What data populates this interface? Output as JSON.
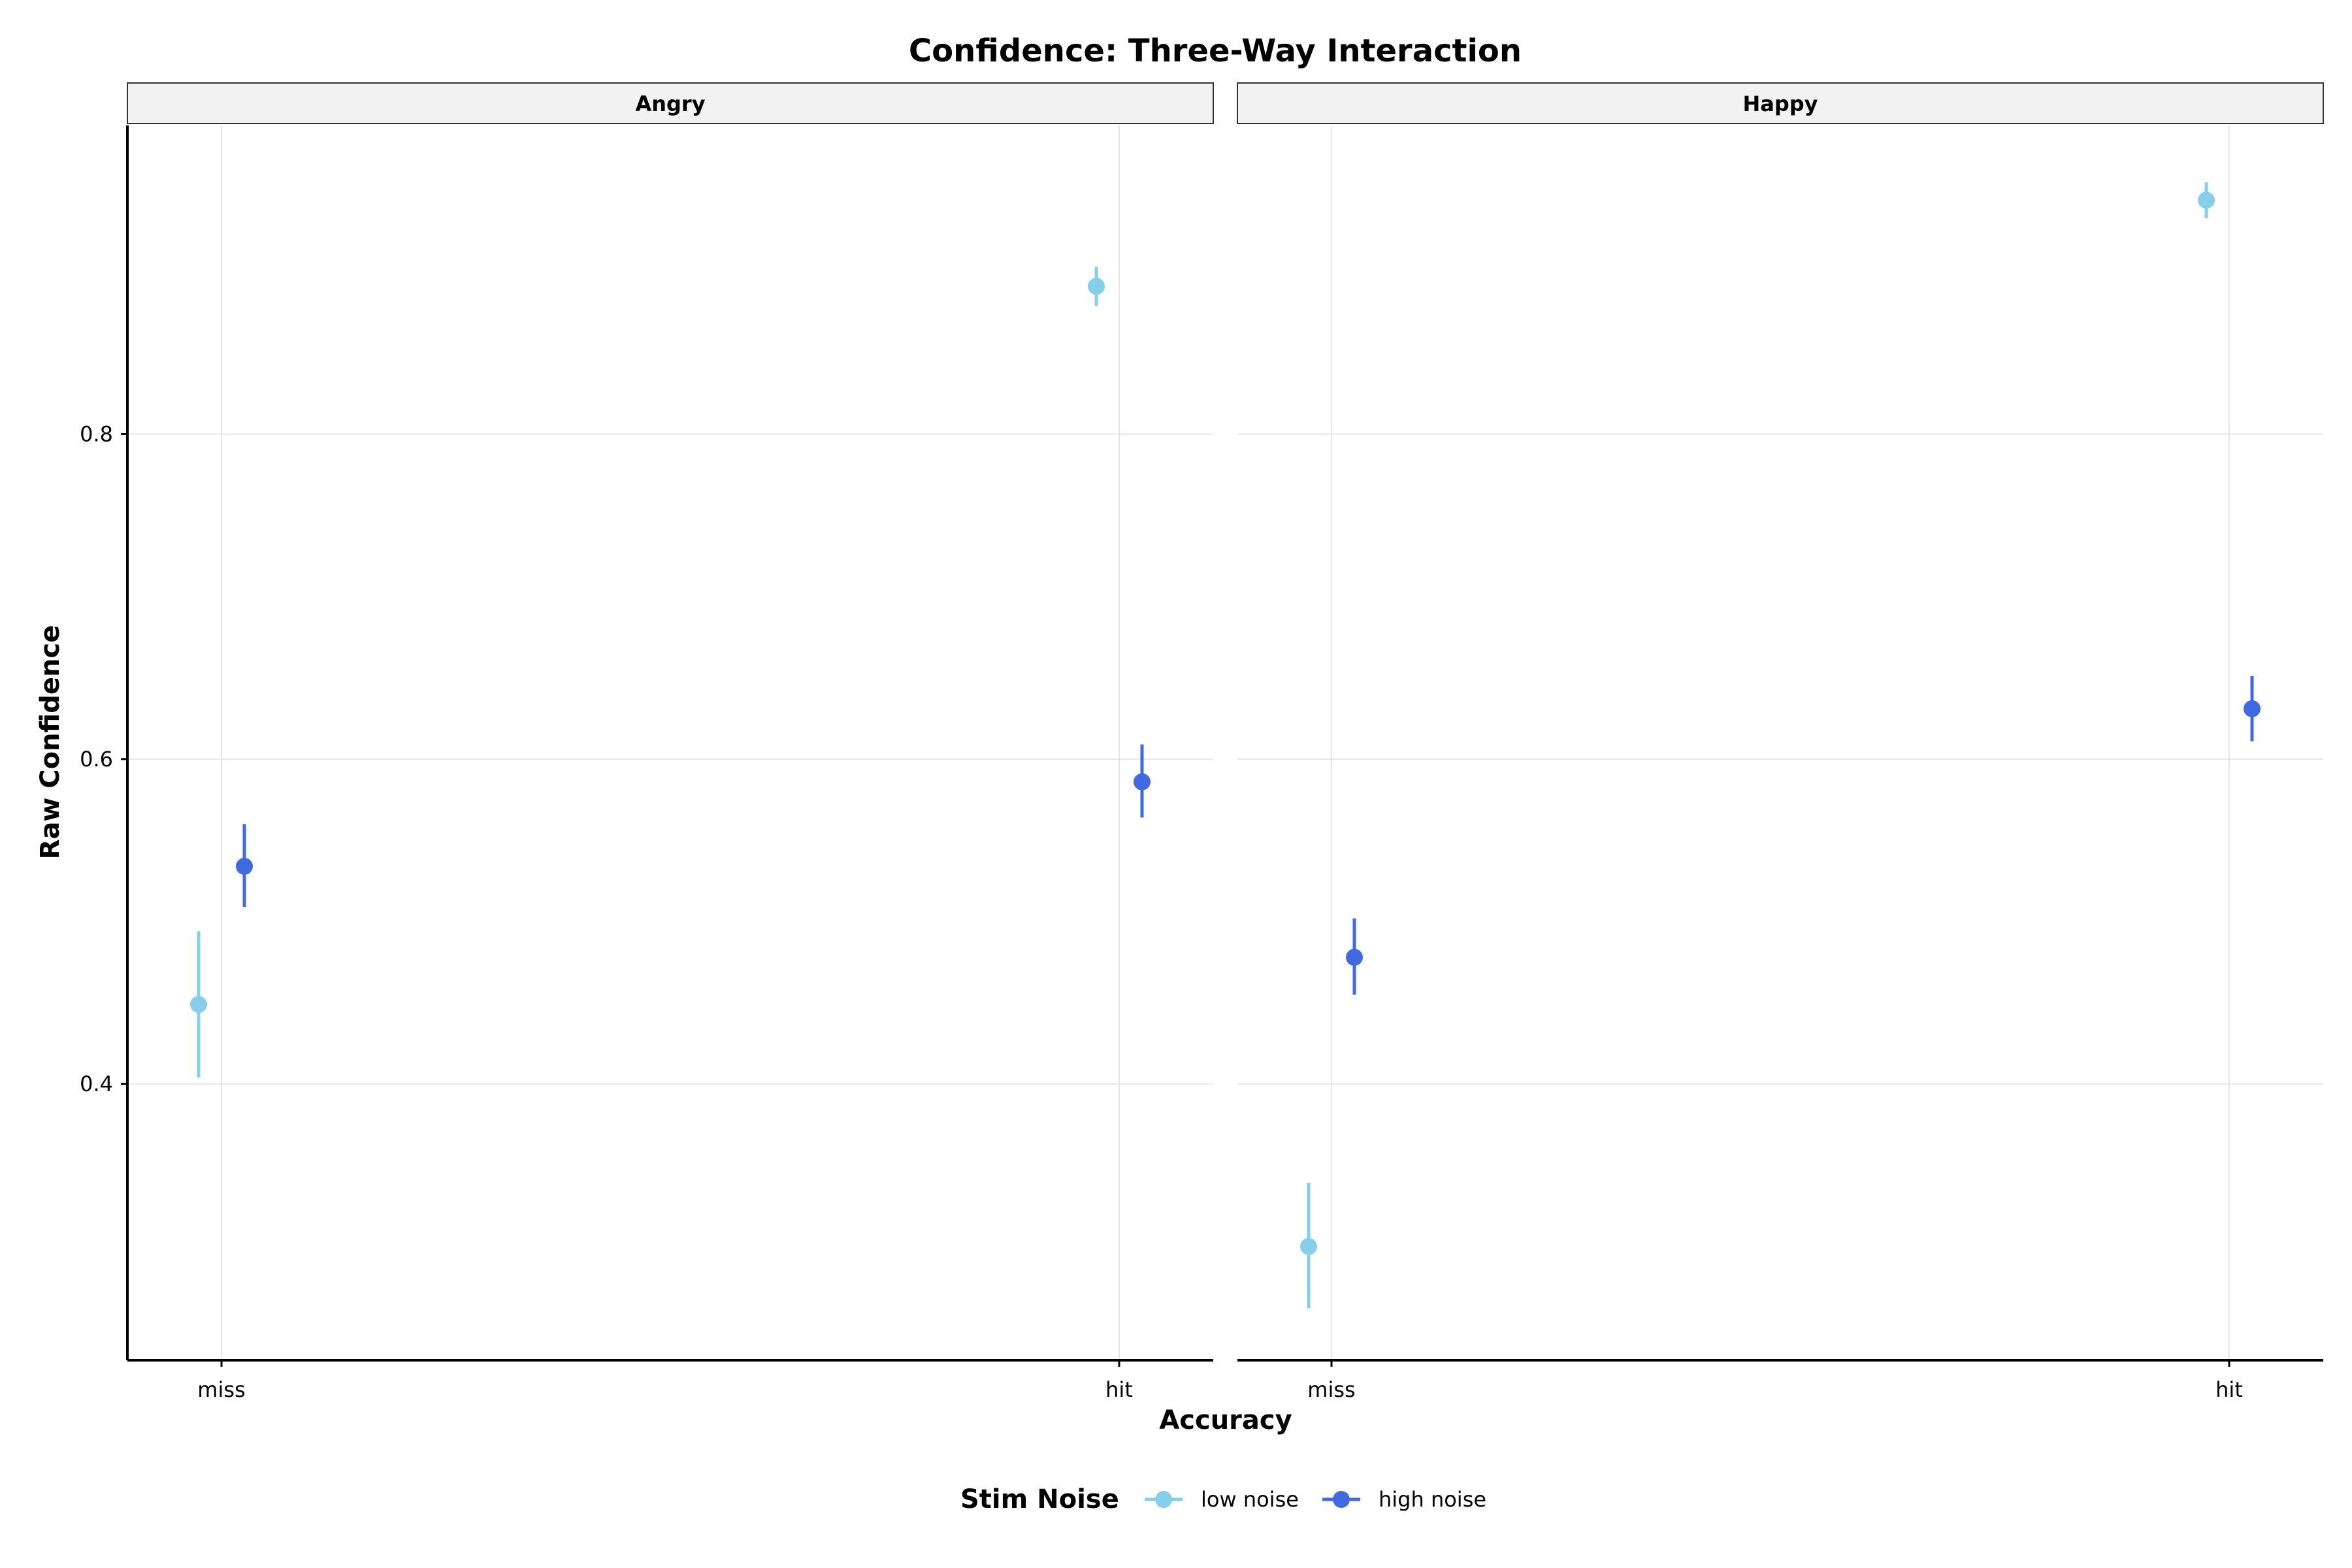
{
  "chart_data": {
    "type": "scatter",
    "title": "Confidence: Three-Way Interaction",
    "xlabel": "Accuracy",
    "ylabel": "Raw Confidence",
    "categories": [
      "miss",
      "hit"
    ],
    "ylim": [
      0.23,
      0.99
    ],
    "yticks": [
      0.4,
      0.6,
      0.8
    ],
    "ytick_labels": [
      "0.4",
      "0.6",
      "0.8"
    ],
    "grid": true,
    "legend": {
      "title": "Stim Noise",
      "position": "bottom",
      "entries": [
        "low noise",
        "high noise"
      ]
    },
    "panels": [
      {
        "label": "Angry",
        "series": [
          {
            "name": "low noise",
            "color": "#87ceeb",
            "values": [
              0.449,
              0.891
            ],
            "lower": [
              0.404,
              0.879
            ],
            "upper": [
              0.494,
              0.903
            ]
          },
          {
            "name": "high noise",
            "color": "#4169e1",
            "values": [
              0.534,
              0.586
            ],
            "lower": [
              0.509,
              0.564
            ],
            "upper": [
              0.56,
              0.609
            ]
          }
        ]
      },
      {
        "label": "Happy",
        "series": [
          {
            "name": "low noise",
            "color": "#87ceeb",
            "values": [
              0.3,
              0.944
            ],
            "lower": [
              0.262,
              0.933
            ],
            "upper": [
              0.339,
              0.955
            ]
          },
          {
            "name": "high noise",
            "color": "#4169e1",
            "values": [
              0.478,
              0.631
            ],
            "lower": [
              0.455,
              0.611
            ],
            "upper": [
              0.502,
              0.651
            ]
          }
        ]
      }
    ]
  }
}
